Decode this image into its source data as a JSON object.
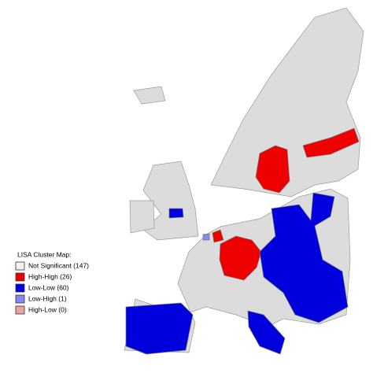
{
  "legend": {
    "title": "LISA Cluster Map:",
    "items": [
      {
        "label": "Not Significant (147)",
        "color": "#f2f2f2"
      },
      {
        "label": "High-High (26)",
        "color": "#ee0000"
      },
      {
        "label": "Low-Low (60)",
        "color": "#0000dd"
      },
      {
        "label": "Low-High (1)",
        "color": "#8888ee"
      },
      {
        "label": "High-Low (0)",
        "color": "#f0a0a0"
      }
    ]
  }
}
